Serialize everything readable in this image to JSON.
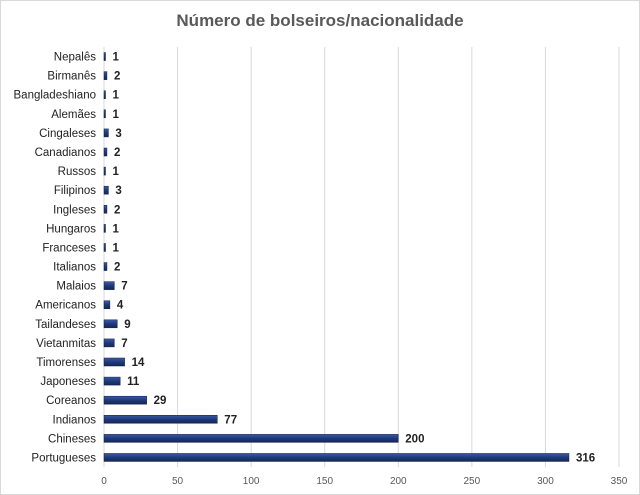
{
  "chart_data": {
    "type": "bar",
    "orientation": "horizontal",
    "title": "Número de bolseiros/nacionalidade",
    "xlabel": "",
    "ylabel": "",
    "categories": [
      "Nepalês",
      "Birmanês",
      "Bangladeshiano",
      "Alemães",
      "Cingaleses",
      "Canadianos",
      "Russos",
      "Filipinos",
      "Ingleses",
      "Hungaros",
      "Franceses",
      "Italianos",
      "Malaios",
      "Americanos",
      "Tailandeses",
      "Vietanmitas",
      "Timorenses",
      "Japoneses",
      "Coreanos",
      "Indianos",
      "Chineses",
      "Portugueses"
    ],
    "values": [
      1,
      2,
      1,
      1,
      3,
      2,
      1,
      3,
      2,
      1,
      1,
      2,
      7,
      4,
      9,
      7,
      14,
      11,
      29,
      77,
      200,
      316
    ],
    "xlim": [
      0,
      350
    ],
    "xticks": [
      0,
      50,
      100,
      150,
      200,
      250,
      300,
      350
    ],
    "grid": true,
    "legend": "none",
    "bar_color": "#1f3a7a"
  }
}
